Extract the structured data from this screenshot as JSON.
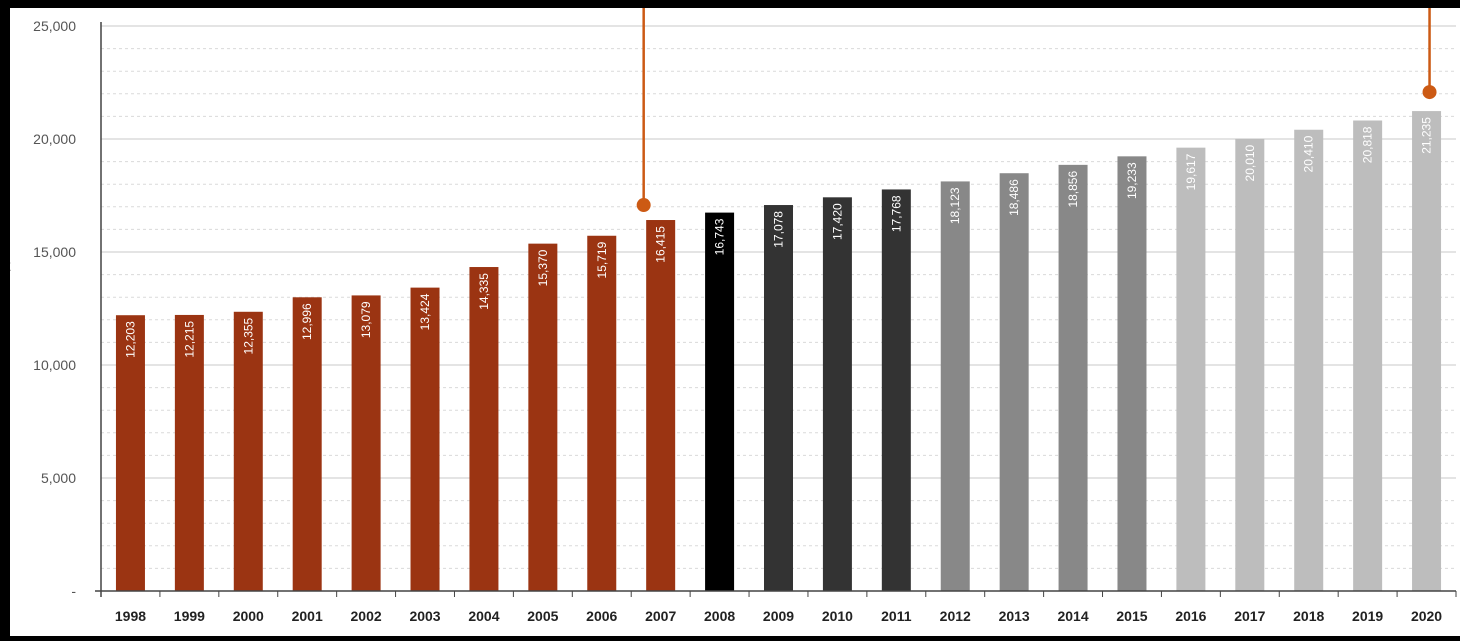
{
  "chart_data": {
    "type": "bar",
    "title": "",
    "xlabel": "",
    "ylabel": "",
    "ylabel_fragment": "t",
    "ylim": [
      0,
      25000
    ],
    "yticks": [
      {
        "value": 0,
        "label": "-"
      },
      {
        "value": 5000,
        "label": "5,000"
      },
      {
        "value": 10000,
        "label": "10,000"
      },
      {
        "value": 15000,
        "label": "15,000"
      },
      {
        "value": 20000,
        "label": "20,000"
      },
      {
        "value": 25000,
        "label": "25,000"
      }
    ],
    "grid": true,
    "categories": [
      "1998",
      "1999",
      "2000",
      "2001",
      "2002",
      "2003",
      "2004",
      "2005",
      "2006",
      "2007",
      "2008",
      "2009",
      "2010",
      "2011",
      "2012",
      "2013",
      "2014",
      "2015",
      "2016",
      "2017",
      "2018",
      "2019",
      "2020"
    ],
    "values": [
      12203,
      12215,
      12355,
      12996,
      13079,
      13424,
      14335,
      15370,
      15719,
      16415,
      16743,
      17078,
      17420,
      17768,
      18123,
      18486,
      18856,
      19233,
      19617,
      20010,
      20410,
      20818,
      21235
    ],
    "labels": [
      "12,203",
      "12,215",
      "12,355",
      "12,996",
      "13,079",
      "13,424",
      "14,335",
      "15,370",
      "15,719",
      "16,415",
      "16,743",
      "17,078",
      "17,420",
      "17,768",
      "18,123",
      "18,486",
      "18,856",
      "19,233",
      "19,617",
      "20,010",
      "20,410",
      "20,818",
      "21,235"
    ],
    "bar_colors": [
      "#9b3412",
      "#9b3412",
      "#9b3412",
      "#9b3412",
      "#9b3412",
      "#9b3412",
      "#9b3412",
      "#9b3412",
      "#9b3412",
      "#9b3412",
      "#000000",
      "#333333",
      "#333333",
      "#333333",
      "#888888",
      "#888888",
      "#888888",
      "#888888",
      "#bdbdbd",
      "#bdbdbd",
      "#bdbdbd",
      "#bdbdbd",
      "#bdbdbd"
    ],
    "annotations": [
      {
        "category": "2007",
        "color": "#cc5a14"
      },
      {
        "category": "2020",
        "color": "#cc5a14"
      }
    ],
    "colors": {
      "grid": "#cfcfcf",
      "axis": "#444444",
      "background": "#ffffff"
    }
  }
}
